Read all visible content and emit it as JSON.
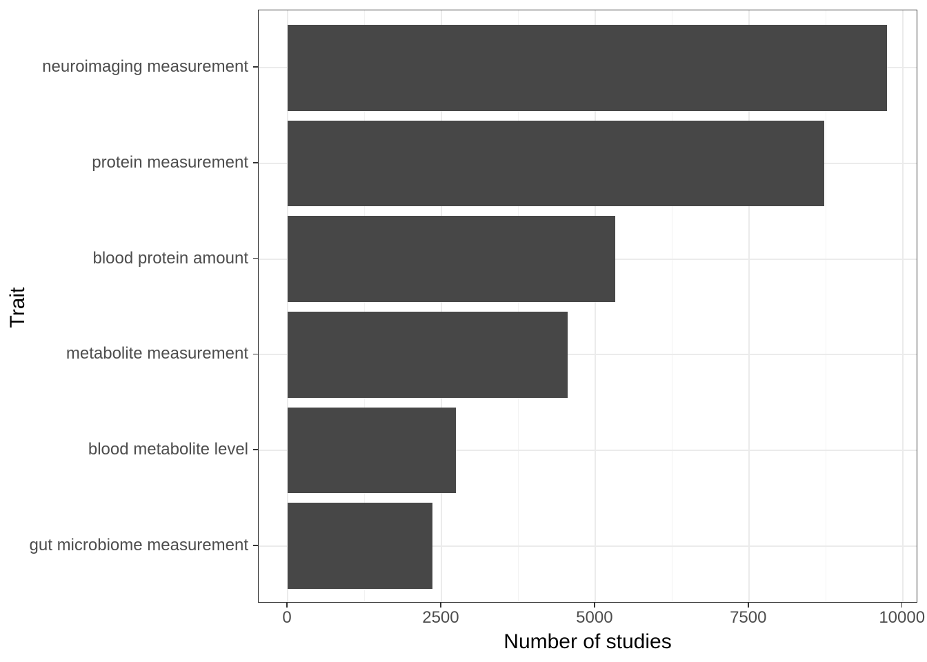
{
  "chart_data": {
    "type": "bar",
    "orientation": "horizontal",
    "title": "",
    "xlabel": "Number of studies",
    "ylabel": "Trait",
    "categories": [
      "neuroimaging measurement",
      "protein measurement",
      "blood protein amount",
      "metabolite measurement",
      "blood metabolite level",
      "gut microbiome measurement"
    ],
    "values": [
      9750,
      8730,
      5330,
      4550,
      2740,
      2350
    ],
    "x_ticks": [
      0,
      2500,
      5000,
      7500,
      10000
    ],
    "x_tick_labels": [
      "0",
      "2500",
      "5000",
      "7500",
      "10000"
    ],
    "x_minor_ticks": [
      1250,
      3750,
      6250,
      8750
    ],
    "xlim": [
      0,
      10250
    ],
    "grid": "major x+y light gray, minor x only",
    "legend": "none",
    "colors": {
      "bar_fill": "#474747",
      "grid_major": "#ebebeb",
      "grid_minor": "#f2f2f2",
      "panel_border": "#333333",
      "tick_text": "#4d4d4d",
      "axis_title_text": "#000000",
      "background": "#ffffff"
    }
  }
}
